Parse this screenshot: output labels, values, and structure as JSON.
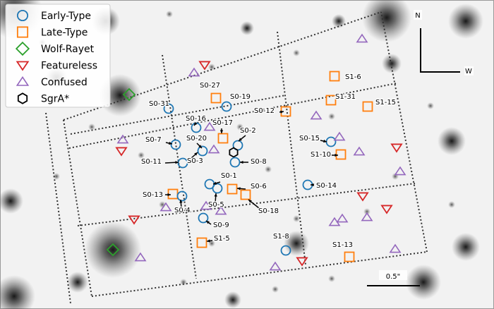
{
  "chart_data": {
    "type": "scatter",
    "title": "",
    "xlabel": "",
    "ylabel": "",
    "grid": "dotted field outlines",
    "legend_placement": "top-left",
    "compass": {
      "north": "N",
      "west": "W"
    },
    "scale_bar": "0.5\"",
    "colors": {
      "early": "#1f77b4",
      "late": "#ff7f0e",
      "wolf_rayet": "#2ca02c",
      "featureless": "#d62728",
      "confused": "#9467bd",
      "sgra": "#000000"
    },
    "legend": [
      {
        "label": "Early-Type",
        "marker": "circle",
        "color": "#1f77b4"
      },
      {
        "label": "Late-Type",
        "marker": "square",
        "color": "#ff7f0e"
      },
      {
        "label": "Wolf-Rayet",
        "marker": "diamond",
        "color": "#2ca02c"
      },
      {
        "label": "Featureless",
        "marker": "triangle-down",
        "color": "#d62728"
      },
      {
        "label": "Confused",
        "marker": "triangle-up",
        "color": "#9467bd"
      },
      {
        "label": "SgrA*",
        "marker": "hexagon",
        "color": "#000000"
      }
    ],
    "labels": [
      "S0-31",
      "S0-27",
      "S0-19",
      "S0-16",
      "S0-17",
      "S0-2",
      "S0-7",
      "S0-20",
      "S0-11",
      "S0-3",
      "S0-8",
      "S0-1",
      "S0-6",
      "S0-13",
      "S0-4",
      "S0-5",
      "S0-18",
      "S0-9",
      "S1-5",
      "S1-6",
      "S1-31",
      "S1-15",
      "S0-12",
      "S0-15",
      "S1-10",
      "S0-14",
      "S1-8",
      "S1-13"
    ]
  }
}
